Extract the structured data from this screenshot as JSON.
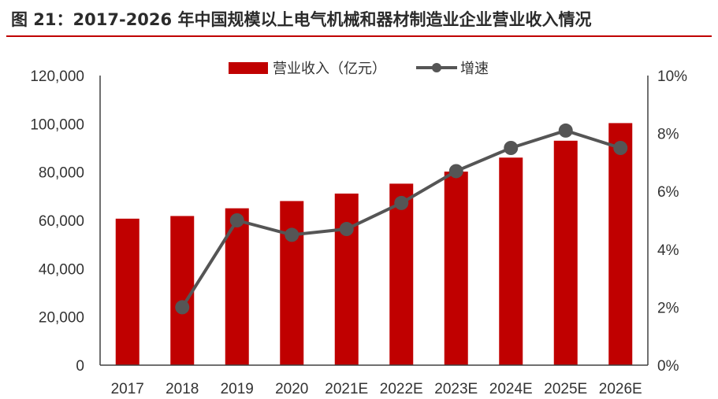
{
  "header": {
    "title": "图 21：2017-2026 年中国规模以上电气机械和器材制造业企业营业收入情况"
  },
  "colors": {
    "bar": "#c00000",
    "line": "#555555",
    "rule": "#c00000",
    "axis": "#404040"
  },
  "chart_data": {
    "type": "bar",
    "categories": [
      "2017",
      "2018",
      "2019",
      "2020",
      "2021E",
      "2022E",
      "2023E",
      "2024E",
      "2025E",
      "2026E"
    ],
    "series": [
      {
        "name": "营业收入（亿元）",
        "type": "bar",
        "axis": "left",
        "values": [
          60700,
          61800,
          65000,
          68000,
          71100,
          75200,
          80200,
          86000,
          93000,
          100300
        ]
      },
      {
        "name": "增速",
        "type": "line",
        "axis": "right",
        "values": [
          null,
          2.0,
          5.0,
          4.5,
          4.7,
          5.6,
          6.7,
          7.5,
          8.1,
          7.5
        ]
      }
    ],
    "ylim": [
      0,
      120000
    ],
    "y_ticks": [
      "0",
      "20,000",
      "40,000",
      "60,000",
      "80,000",
      "100,000",
      "120,000"
    ],
    "y2lim": [
      0,
      10
    ],
    "y2_ticks": [
      "0%",
      "2%",
      "4%",
      "6%",
      "8%",
      "10%"
    ],
    "legend": {
      "position": "top-center"
    },
    "grid": false
  }
}
